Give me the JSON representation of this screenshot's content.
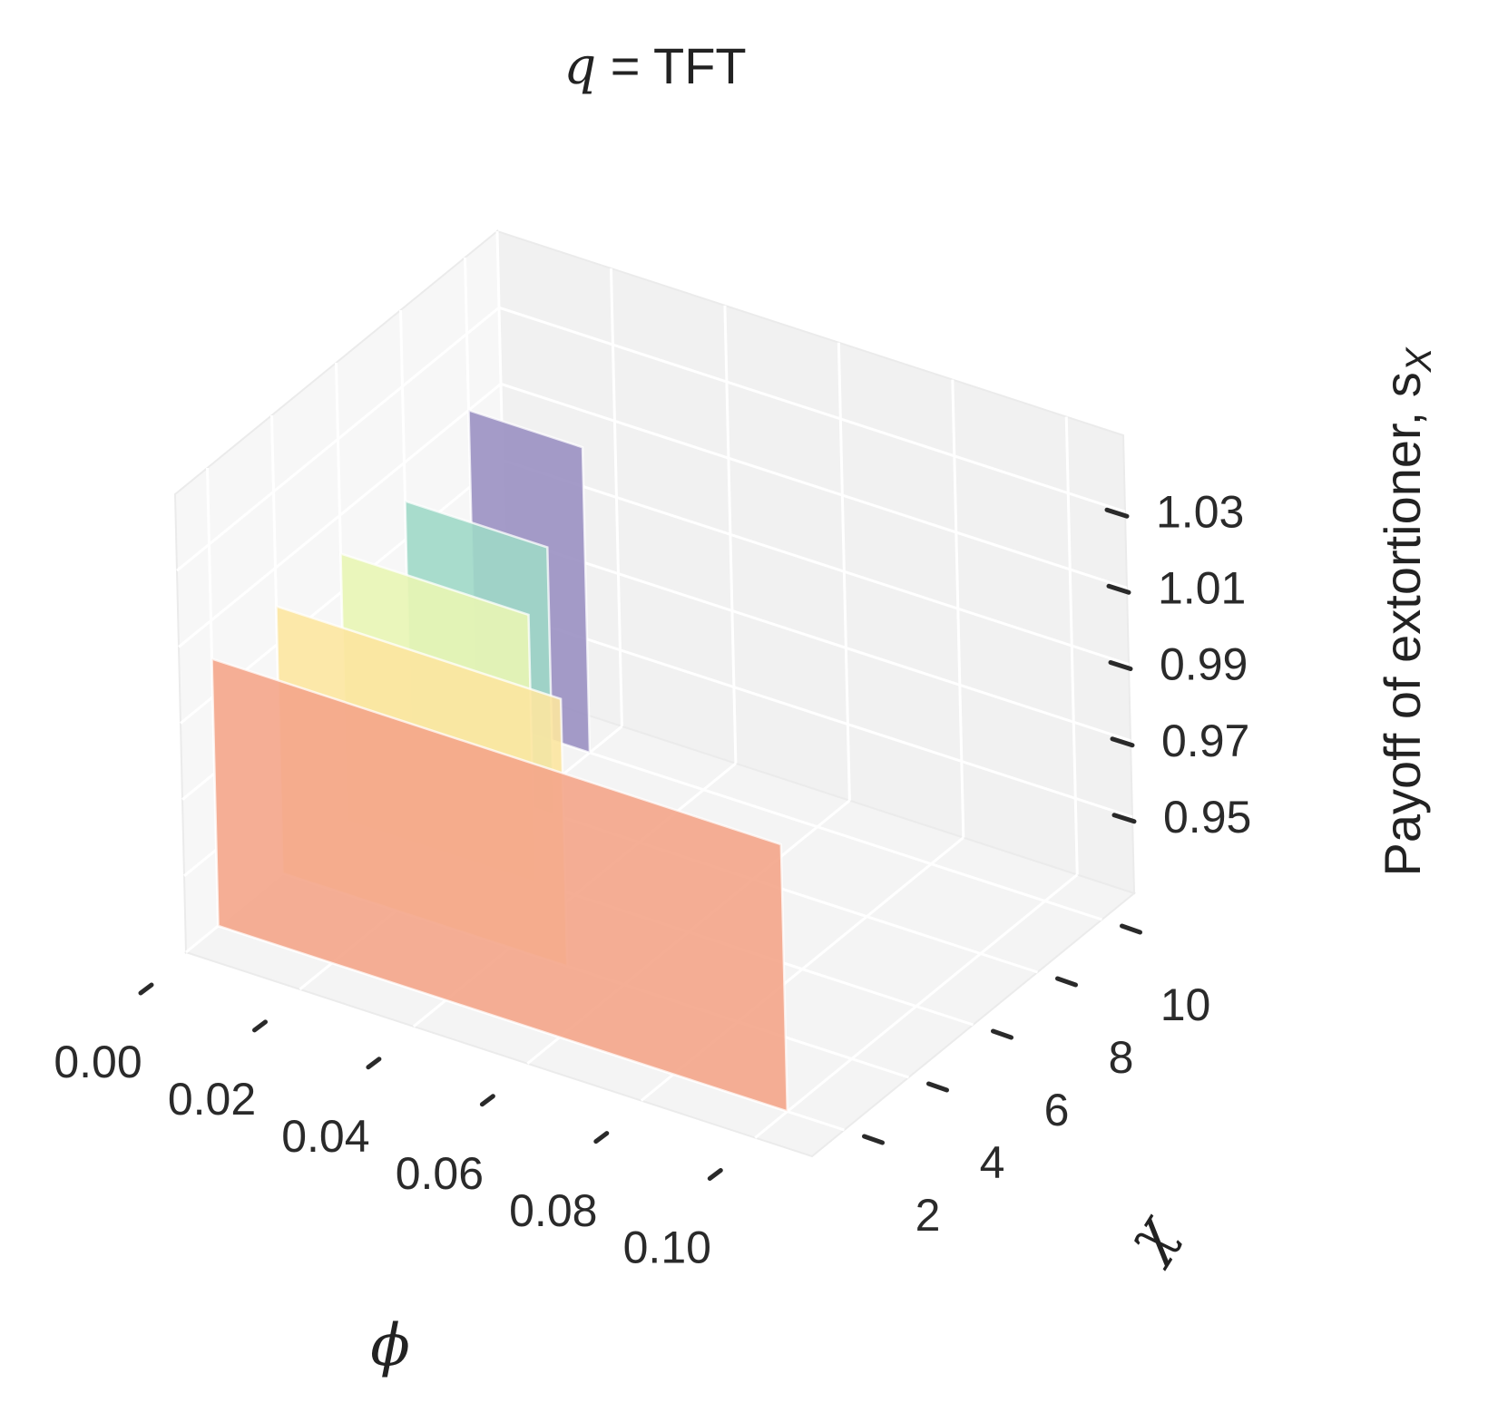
{
  "chart_data": {
    "type": "bar",
    "title": "q = TFT",
    "title_parts": {
      "var": "q",
      "eq": " = ",
      "value": "TFT"
    },
    "xlabel": "ϕ",
    "ylabel": "χ",
    "zlabel": "Payoff of extortioner, s",
    "zlabel_sub": "X",
    "x_ticks": [
      "0.00",
      "0.02",
      "0.04",
      "0.06",
      "0.08",
      "0.10"
    ],
    "y_ticks": [
      "2",
      "4",
      "6",
      "8",
      "10"
    ],
    "z_ticks": [
      "0.95",
      "0.97",
      "0.99",
      "1.01",
      "1.03"
    ],
    "xlim": [
      0.0,
      0.11
    ],
    "ylim": [
      1,
      11
    ],
    "zlim": [
      0.93,
      1.05
    ],
    "grid": true,
    "series": [
      {
        "chi": 2,
        "phi_max": 0.1,
        "value": 1.0,
        "color": "#f4a58a"
      },
      {
        "chi": 4,
        "phi_max": 0.05,
        "value": 1.0,
        "color": "#fce5a0"
      },
      {
        "chi": 6,
        "phi_max": 0.033,
        "value": 1.0,
        "color": "#e8f5b4"
      },
      {
        "chi": 8,
        "phi_max": 0.025,
        "value": 1.0,
        "color": "#9fd8c6"
      },
      {
        "chi": 10,
        "phi_max": 0.02,
        "value": 1.01,
        "color": "#9a90c2"
      }
    ]
  }
}
